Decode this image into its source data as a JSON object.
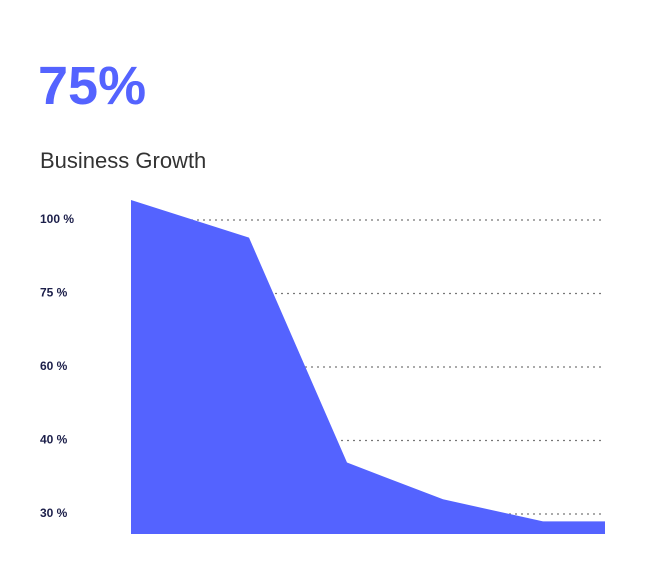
{
  "stat": "75%",
  "chart_data": {
    "type": "area",
    "title": "Business Growth",
    "values": [
      107,
      94,
      37,
      32,
      29,
      29
    ],
    "color": "#5463ff",
    "ylim": [
      27.3,
      107
    ],
    "yticks": [
      {
        "value": 100,
        "label": "100 %"
      },
      {
        "value": 75,
        "label": "75 %"
      },
      {
        "value": 60,
        "label": "60 %"
      },
      {
        "value": 40,
        "label": "40 %"
      },
      {
        "value": 30,
        "label": "30 %"
      }
    ],
    "grid": true
  }
}
